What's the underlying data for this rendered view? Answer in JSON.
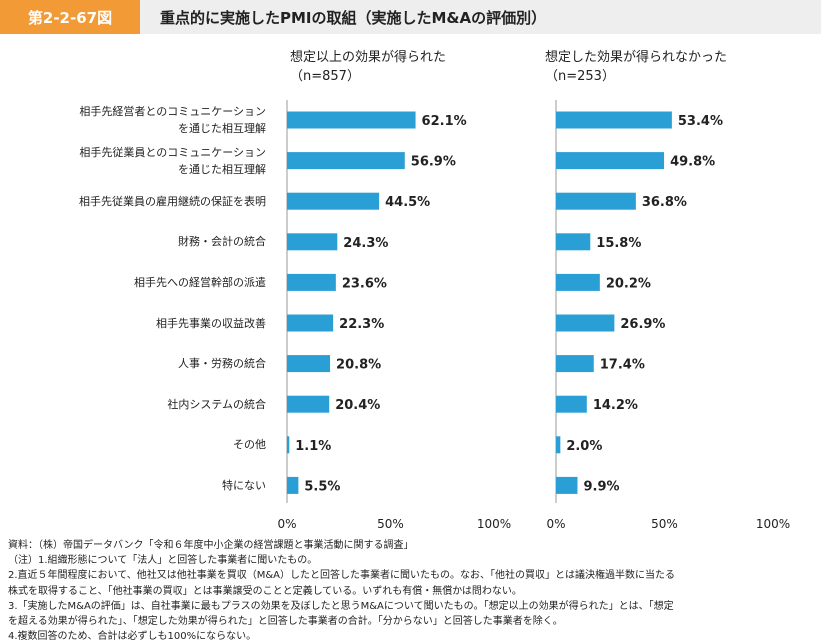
{
  "header": {
    "figure_id": "第2-2-67図",
    "title": "重点的に実施したPMIの取組（実施したM&Aの評価別）"
  },
  "colors": {
    "bar": "#2a9fd6",
    "accent": "#f29a36",
    "header_bg": "#eeeeee"
  },
  "chart_data": [
    {
      "type": "bar",
      "orientation": "horizontal",
      "title": "想定以上の効果が得られた",
      "subtitle": "（n=857）",
      "categories": [
        "相手先経営者とのコミュニケーション\nを通じた相互理解",
        "相手先従業員とのコミュニケーション\nを通じた相互理解",
        "相手先従業員の雇用継続の保証を表明",
        "財務・会計の統合",
        "相手先への経営幹部の派遣",
        "相手先事業の収益改善",
        "人事・労務の統合",
        "社内システムの統合",
        "その他",
        "特にない"
      ],
      "values": [
        62.1,
        56.9,
        44.5,
        24.3,
        23.6,
        22.3,
        20.8,
        20.4,
        1.1,
        5.5
      ],
      "value_labels": [
        "62.1%",
        "56.9%",
        "44.5%",
        "24.3%",
        "23.6%",
        "22.3%",
        "20.8%",
        "20.4%",
        "1.1%",
        "5.5%"
      ],
      "xlim": [
        0,
        100
      ],
      "ticks": [
        "0%",
        "50%",
        "100%"
      ]
    },
    {
      "type": "bar",
      "orientation": "horizontal",
      "title": "想定した効果が得られなかった",
      "subtitle": "（n=253）",
      "values": [
        53.4,
        49.8,
        36.8,
        15.8,
        20.2,
        26.9,
        17.4,
        14.2,
        2.0,
        9.9
      ],
      "value_labels": [
        "53.4%",
        "49.8%",
        "36.8%",
        "15.8%",
        "20.2%",
        "26.9%",
        "17.4%",
        "14.2%",
        "2.0%",
        "9.9%"
      ],
      "xlim": [
        0,
        100
      ],
      "ticks": [
        "0%",
        "50%",
        "100%"
      ]
    }
  ],
  "notes": [
    "資料：（株）帝国データバンク「令和６年度中小企業の経営課題と事業活動に関する調査」",
    "（注）1.組織形態について「法人」と回答した事業者に聞いたもの。",
    "2.直近５年間程度において、他社又は他社事業を買収（M&A）したと回答した事業者に聞いたもの。なお、「他社の買収」とは議決権過半数に当たる",
    "株式を取得すること、「他社事業の買収」とは事業譲受のことと定義している。いずれも有償・無償かは問わない。",
    "3.「実施したM&Aの評価」は、自社事業に最もプラスの効果を及ぼしたと思うM&Aについて聞いたもの。「想定以上の効果が得られた」とは、「想定",
    "を超える効果が得られた」、「想定した効果が得られた」と回答した事業者の合計。「分からない」と回答した事業者を除く。",
    "4.複数回答のため、合計は必ずしも100%にならない。"
  ]
}
